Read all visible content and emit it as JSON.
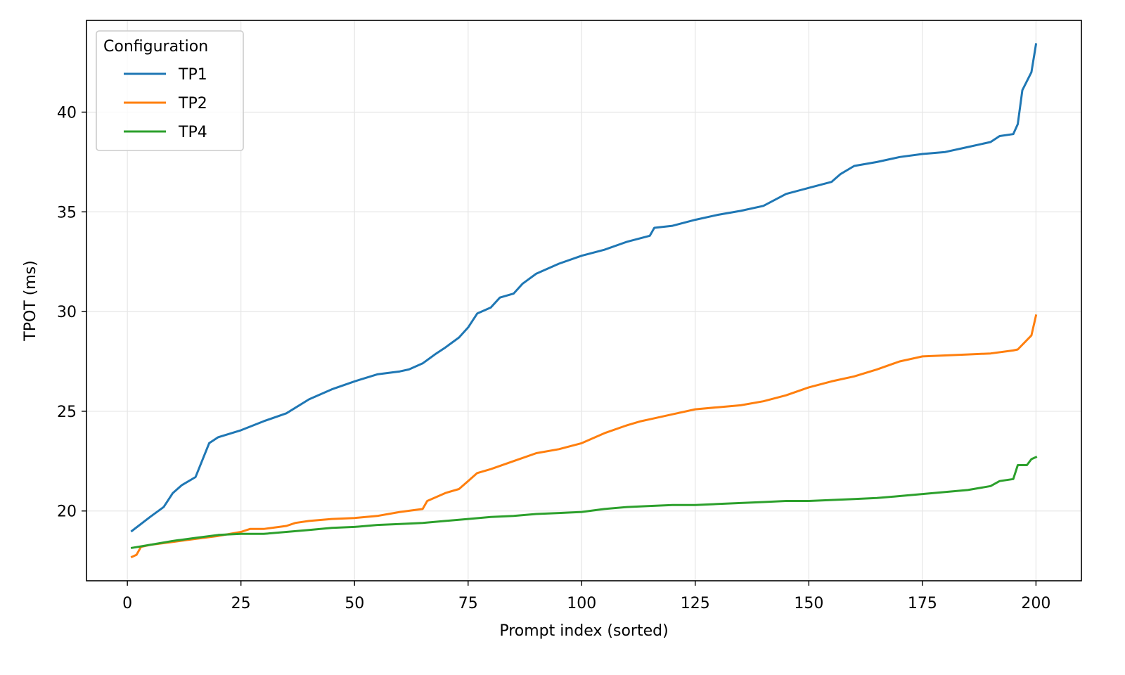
{
  "chart_data": {
    "type": "line",
    "xlabel": "Prompt index (sorted)",
    "ylabel": "TPOT (ms)",
    "xlim": [
      -9,
      210
    ],
    "ylim": [
      16.5,
      44.6
    ],
    "x_ticks": [
      0,
      25,
      50,
      75,
      100,
      125,
      150,
      175,
      200
    ],
    "y_ticks": [
      20,
      25,
      30,
      35,
      40
    ],
    "grid": true,
    "legend": {
      "title": "Configuration",
      "placement": "top-left"
    },
    "series": [
      {
        "name": "TP1",
        "color": "#1f77b4",
        "points": [
          [
            1,
            19.0
          ],
          [
            5,
            19.7
          ],
          [
            8,
            20.2
          ],
          [
            10,
            20.9
          ],
          [
            12,
            21.3
          ],
          [
            15,
            21.7
          ],
          [
            18,
            23.4
          ],
          [
            20,
            23.7
          ],
          [
            25,
            24.05
          ],
          [
            30,
            24.5
          ],
          [
            35,
            24.9
          ],
          [
            40,
            25.6
          ],
          [
            45,
            26.1
          ],
          [
            50,
            26.5
          ],
          [
            55,
            26.85
          ],
          [
            60,
            27.0
          ],
          [
            62,
            27.1
          ],
          [
            65,
            27.4
          ],
          [
            68,
            27.9
          ],
          [
            70,
            28.2
          ],
          [
            73,
            28.7
          ],
          [
            75,
            29.2
          ],
          [
            77,
            29.9
          ],
          [
            80,
            30.2
          ],
          [
            82,
            30.7
          ],
          [
            85,
            30.9
          ],
          [
            87,
            31.4
          ],
          [
            90,
            31.9
          ],
          [
            95,
            32.4
          ],
          [
            100,
            32.8
          ],
          [
            105,
            33.1
          ],
          [
            110,
            33.5
          ],
          [
            115,
            33.8
          ],
          [
            116,
            34.2
          ],
          [
            120,
            34.3
          ],
          [
            125,
            34.6
          ],
          [
            130,
            34.85
          ],
          [
            135,
            35.05
          ],
          [
            140,
            35.3
          ],
          [
            145,
            35.9
          ],
          [
            150,
            36.2
          ],
          [
            155,
            36.5
          ],
          [
            157,
            36.9
          ],
          [
            160,
            37.3
          ],
          [
            165,
            37.5
          ],
          [
            170,
            37.75
          ],
          [
            175,
            37.9
          ],
          [
            180,
            38.0
          ],
          [
            185,
            38.25
          ],
          [
            190,
            38.5
          ],
          [
            192,
            38.8
          ],
          [
            195,
            38.9
          ],
          [
            196,
            39.4
          ],
          [
            197,
            41.1
          ],
          [
            199,
            42.0
          ],
          [
            200,
            43.4
          ]
        ]
      },
      {
        "name": "TP2",
        "color": "#ff7f0e",
        "points": [
          [
            1,
            17.7
          ],
          [
            2,
            17.8
          ],
          [
            3,
            18.2
          ],
          [
            5,
            18.3
          ],
          [
            10,
            18.45
          ],
          [
            15,
            18.6
          ],
          [
            20,
            18.75
          ],
          [
            25,
            18.95
          ],
          [
            27,
            19.1
          ],
          [
            30,
            19.1
          ],
          [
            35,
            19.25
          ],
          [
            37,
            19.4
          ],
          [
            40,
            19.5
          ],
          [
            45,
            19.6
          ],
          [
            50,
            19.65
          ],
          [
            55,
            19.75
          ],
          [
            60,
            19.95
          ],
          [
            65,
            20.1
          ],
          [
            66,
            20.5
          ],
          [
            68,
            20.7
          ],
          [
            70,
            20.9
          ],
          [
            73,
            21.1
          ],
          [
            75,
            21.5
          ],
          [
            77,
            21.9
          ],
          [
            80,
            22.1
          ],
          [
            85,
            22.5
          ],
          [
            90,
            22.9
          ],
          [
            95,
            23.1
          ],
          [
            100,
            23.4
          ],
          [
            103,
            23.7
          ],
          [
            105,
            23.9
          ],
          [
            110,
            24.3
          ],
          [
            113,
            24.5
          ],
          [
            115,
            24.6
          ],
          [
            120,
            24.85
          ],
          [
            125,
            25.1
          ],
          [
            130,
            25.2
          ],
          [
            135,
            25.3
          ],
          [
            140,
            25.5
          ],
          [
            145,
            25.8
          ],
          [
            150,
            26.2
          ],
          [
            155,
            26.5
          ],
          [
            160,
            26.75
          ],
          [
            165,
            27.1
          ],
          [
            170,
            27.5
          ],
          [
            175,
            27.75
          ],
          [
            180,
            27.8
          ],
          [
            185,
            27.85
          ],
          [
            190,
            27.9
          ],
          [
            195,
            28.05
          ],
          [
            196,
            28.1
          ],
          [
            199,
            28.8
          ],
          [
            200,
            29.8
          ]
        ]
      },
      {
        "name": "TP4",
        "color": "#2ca02c",
        "points": [
          [
            1,
            18.15
          ],
          [
            5,
            18.3
          ],
          [
            10,
            18.5
          ],
          [
            15,
            18.65
          ],
          [
            20,
            18.8
          ],
          [
            25,
            18.85
          ],
          [
            30,
            18.85
          ],
          [
            35,
            18.95
          ],
          [
            40,
            19.05
          ],
          [
            45,
            19.15
          ],
          [
            50,
            19.2
          ],
          [
            55,
            19.3
          ],
          [
            60,
            19.35
          ],
          [
            65,
            19.4
          ],
          [
            70,
            19.5
          ],
          [
            75,
            19.6
          ],
          [
            80,
            19.7
          ],
          [
            85,
            19.75
          ],
          [
            90,
            19.85
          ],
          [
            95,
            19.9
          ],
          [
            100,
            19.95
          ],
          [
            105,
            20.1
          ],
          [
            110,
            20.2
          ],
          [
            115,
            20.25
          ],
          [
            120,
            20.3
          ],
          [
            125,
            20.3
          ],
          [
            130,
            20.35
          ],
          [
            135,
            20.4
          ],
          [
            140,
            20.45
          ],
          [
            145,
            20.5
          ],
          [
            150,
            20.5
          ],
          [
            155,
            20.55
          ],
          [
            160,
            20.6
          ],
          [
            165,
            20.65
          ],
          [
            170,
            20.75
          ],
          [
            175,
            20.85
          ],
          [
            180,
            20.95
          ],
          [
            185,
            21.05
          ],
          [
            190,
            21.25
          ],
          [
            192,
            21.5
          ],
          [
            195,
            21.6
          ],
          [
            196,
            22.3
          ],
          [
            198,
            22.3
          ],
          [
            199,
            22.6
          ],
          [
            200,
            22.7
          ]
        ]
      }
    ]
  }
}
